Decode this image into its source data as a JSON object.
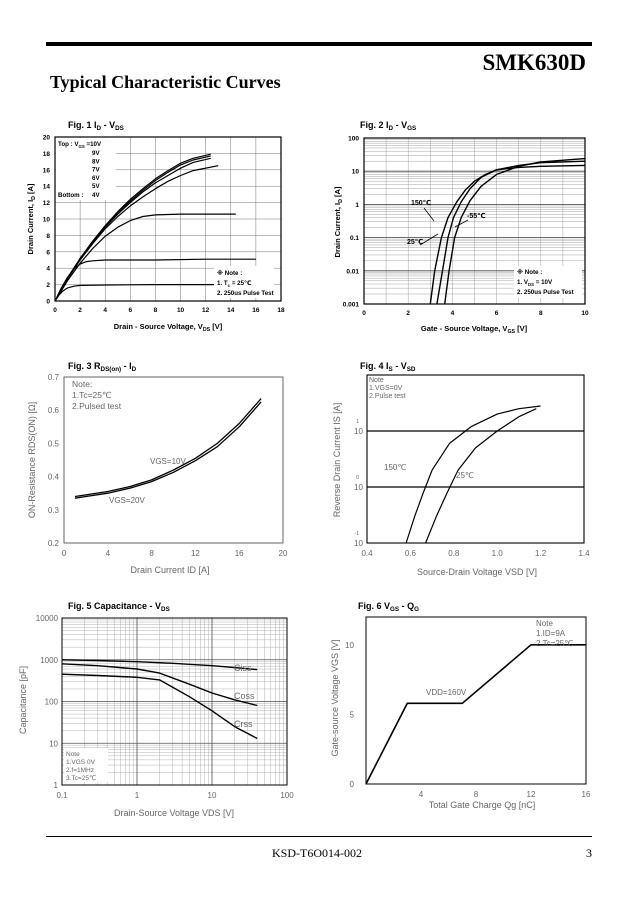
{
  "header": {
    "part_number": "SMK630D",
    "section_title": "Typical Characteristic Curves"
  },
  "footer": {
    "doc_number": "KSD-T6O014-002",
    "page": "3"
  },
  "chart_data": [
    {
      "id": "fig1",
      "type": "line",
      "title_main": "Fig. 1 I",
      "title_sub": "D",
      "title_rest": "  -  V",
      "title_sub2": "DS",
      "xlabel": "Drain - Source Voltage, V",
      "xlabel_sub": "DS",
      "xlabel_tail": " [V]",
      "ylabel": "Drain Current, I",
      "ylabel_sub": "D",
      "ylabel_tail": " [A]",
      "xlim": [
        0,
        18
      ],
      "ylim": [
        0,
        20
      ],
      "xticks": [
        "0",
        "2",
        "4",
        "6",
        "8",
        "10",
        "12",
        "14",
        "16",
        "18"
      ],
      "yticks": [
        "0",
        "2",
        "4",
        "6",
        "8",
        "10",
        "12",
        "14",
        "16",
        "18",
        "20"
      ],
      "legend": [
        "Top : V",
        "GS",
        " =10V",
        "9V",
        "8V",
        "7V",
        "6V",
        "5V",
        "Bottom :",
        "4V"
      ],
      "note": [
        "※ Note :",
        "1. T",
        "c",
        " = 25℃",
        "2. 250us Pulse Test"
      ],
      "series": [
        {
          "name": "10V",
          "x": [
            0,
            1,
            2,
            3,
            4,
            5,
            6,
            7,
            8,
            9,
            10,
            11,
            12.4
          ],
          "y": [
            0,
            2.8,
            5.2,
            7.3,
            9.2,
            10.9,
            12.4,
            13.7,
            14.9,
            15.9,
            16.8,
            17.4,
            17.9
          ]
        },
        {
          "name": "9V",
          "x": [
            0,
            1,
            2,
            3,
            4,
            5,
            6,
            7,
            8,
            9,
            10,
            11,
            12.4
          ],
          "y": [
            0,
            2.8,
            5.2,
            7.2,
            9.1,
            10.8,
            12.2,
            13.5,
            14.7,
            15.7,
            16.6,
            17.2,
            17.7
          ]
        },
        {
          "name": "8V",
          "x": [
            0,
            1,
            2,
            3,
            4,
            5,
            6,
            7,
            8,
            9,
            10,
            11,
            12.4
          ],
          "y": [
            0,
            2.8,
            5.1,
            7.1,
            9.0,
            10.6,
            12.0,
            13.3,
            14.4,
            15.3,
            16.2,
            16.9,
            17.4
          ]
        },
        {
          "name": "7V",
          "x": [
            0,
            1,
            2,
            3,
            4,
            5,
            6,
            7,
            8,
            9,
            10,
            11,
            13
          ],
          "y": [
            0,
            2.7,
            5.0,
            7.0,
            8.8,
            10.3,
            11.6,
            12.7,
            13.7,
            14.6,
            15.3,
            15.9,
            16.5
          ]
        },
        {
          "name": "6V",
          "x": [
            0,
            1,
            2,
            3,
            4,
            5,
            6,
            7,
            8,
            10,
            12,
            14.4
          ],
          "y": [
            0,
            2.5,
            4.6,
            6.4,
            7.9,
            9.0,
            9.8,
            10.3,
            10.5,
            10.6,
            10.6,
            10.6
          ]
        },
        {
          "name": "5V",
          "x": [
            0,
            0.5,
            1,
            1.5,
            2,
            2.5,
            3,
            4,
            6,
            8,
            12,
            16
          ],
          "y": [
            0,
            1.6,
            2.9,
            3.9,
            4.5,
            4.8,
            4.9,
            5.0,
            5.0,
            5.0,
            5.1,
            5.1
          ]
        },
        {
          "name": "4V",
          "x": [
            0,
            0.3,
            0.6,
            1,
            1.5,
            2,
            4,
            8,
            12,
            14.4
          ],
          "y": [
            0,
            0.7,
            1.2,
            1.6,
            1.8,
            1.9,
            1.95,
            2.0,
            2.0,
            2.0
          ]
        }
      ]
    },
    {
      "id": "fig2",
      "type": "line",
      "title_main": "Fig. 2 I",
      "title_sub": "D",
      "title_rest": "  -  V",
      "title_sub2": "GS",
      "xlabel": "Gate - Source Voltage, V",
      "xlabel_sub": "GS",
      "xlabel_tail": " [V]",
      "ylabel": "Drain Current, I",
      "ylabel_sub": "D",
      "ylabel_tail": " [A]",
      "xscale": "linear",
      "yscale": "log",
      "xlim": [
        0,
        10
      ],
      "ylim": [
        0.001,
        100
      ],
      "xticks": [
        "0",
        "2",
        "4",
        "6",
        "8",
        "10"
      ],
      "yticks": [
        "0.001",
        "0.01",
        "0.1",
        "1",
        "10",
        "100"
      ],
      "note": [
        "※ Note :",
        "1. V",
        "DS",
        " = 10V",
        "2. 250us Pulse Test"
      ],
      "annotations": [
        "150℃",
        "-55℃",
        "25℃"
      ],
      "series": [
        {
          "name": "150℃",
          "x": [
            3.0,
            3.2,
            3.5,
            3.8,
            4.2,
            4.6,
            5.0,
            5.5,
            6.0,
            7.0,
            8.0,
            10.0
          ],
          "y": [
            0.001,
            0.01,
            0.1,
            0.4,
            1.2,
            2.8,
            5.0,
            8.0,
            11.0,
            13.0,
            14.0,
            15.0
          ]
        },
        {
          "name": "25℃",
          "x": [
            3.3,
            3.55,
            3.8,
            4.05,
            4.4,
            4.8,
            5.3,
            6.0,
            7.0,
            8.0,
            10.0
          ],
          "y": [
            0.001,
            0.01,
            0.1,
            0.4,
            1.2,
            3.0,
            6.5,
            11.0,
            15.0,
            18.0,
            20.0
          ]
        },
        {
          "name": "-55℃",
          "x": [
            3.65,
            3.85,
            4.1,
            4.4,
            4.8,
            5.3,
            6.0,
            7.0,
            8.0,
            10.0
          ],
          "y": [
            0.001,
            0.01,
            0.1,
            0.4,
            1.3,
            3.5,
            8.0,
            14.0,
            19.0,
            24.0
          ]
        }
      ]
    },
    {
      "id": "fig3",
      "type": "line",
      "title_main": "Fig. 3 R",
      "title_sub": "DS(on)",
      "title_rest": "  -  I",
      "title_sub2": "D",
      "xlabel": "Drain Current ID [A]",
      "ylabel": "ON-Resistance RDS(ON) [Ω]",
      "xlim": [
        0,
        20
      ],
      "ylim": [
        0.2,
        0.7
      ],
      "xticks": [
        "0",
        "4",
        "8",
        "12",
        "16",
        "20"
      ],
      "yticks": [
        "0.2",
        "0.3",
        "0.4",
        "0.5",
        "0.6",
        "0.7"
      ],
      "note": [
        "Note:",
        "1.Tc=25℃",
        "2.Pulsed test"
      ],
      "series": [
        {
          "name": "VGS=10V",
          "x": [
            1,
            2,
            4,
            6,
            8,
            10,
            12,
            14,
            16,
            18
          ],
          "y": [
            0.34,
            0.345,
            0.355,
            0.37,
            0.39,
            0.42,
            0.455,
            0.5,
            0.56,
            0.635
          ]
        },
        {
          "name": "VGS=20V",
          "x": [
            1,
            2,
            4,
            6,
            8,
            10,
            12,
            14,
            16,
            18
          ],
          "y": [
            0.335,
            0.34,
            0.35,
            0.365,
            0.385,
            0.413,
            0.448,
            0.49,
            0.55,
            0.625
          ]
        }
      ],
      "labels": [
        "VGS=10V",
        "VGS=20V"
      ]
    },
    {
      "id": "fig4",
      "type": "line",
      "title_main": "Fig. 4 I",
      "title_sub": "S",
      "title_rest": " -  V",
      "title_sub2": "SD",
      "xlabel": "Source-Drain Voltage VSD [V]",
      "ylabel": "Reverse Drain Current IS [A]",
      "xscale": "linear",
      "yscale": "log",
      "xlim": [
        0.4,
        1.4
      ],
      "ylim": [
        0.1,
        100
      ],
      "xticks": [
        "0.4",
        "0.6",
        "0.8",
        "1.0",
        "1.2",
        "1.4"
      ],
      "yticks": [
        "10",
        "10",
        "10"
      ],
      "ytick_exp": [
        "-1",
        "0",
        "1"
      ],
      "note": [
        "Note",
        "1.VGS=0V",
        "2.Pulse test"
      ],
      "series": [
        {
          "name": "150℃",
          "x": [
            0.58,
            0.62,
            0.66,
            0.7,
            0.78,
            0.88,
            1.0,
            1.1,
            1.2
          ],
          "y": [
            0.1,
            0.3,
            0.8,
            2.0,
            6.0,
            12.0,
            20.0,
            25.0,
            28.0
          ]
        },
        {
          "name": "25℃",
          "x": [
            0.67,
            0.72,
            0.77,
            0.82,
            0.9,
            1.0,
            1.1,
            1.18
          ],
          "y": [
            0.1,
            0.3,
            0.8,
            2.0,
            5.0,
            10.0,
            18.0,
            25.0
          ]
        }
      ],
      "labels": [
        "150℃",
        "25℃"
      ]
    },
    {
      "id": "fig5",
      "type": "line",
      "title_main": "Fig. 5 Capacitance - V",
      "title_sub": "DS",
      "xlabel": "Drain-Source Voltage VDS [V]",
      "ylabel": "Capacitance [pF]",
      "xscale": "log",
      "yscale": "log",
      "xlim": [
        0.1,
        100
      ],
      "ylim": [
        1,
        10000
      ],
      "xticks": [
        "0.1",
        "1",
        "10",
        "100"
      ],
      "yticks": [
        "1",
        "10",
        "100",
        "1000",
        "10000"
      ],
      "note": [
        "Note",
        "1.VGS 0V",
        "2.f=1MHz",
        "3.Tc=25℃"
      ],
      "series": [
        {
          "name": "Ciss",
          "x": [
            0.1,
            0.3,
            1,
            3,
            10,
            20,
            40
          ],
          "y": [
            1000,
            960,
            900,
            820,
            720,
            650,
            580
          ]
        },
        {
          "name": "Coss",
          "x": [
            0.1,
            0.3,
            1,
            2,
            5,
            10,
            20,
            40
          ],
          "y": [
            800,
            720,
            600,
            480,
            260,
            160,
            110,
            80
          ]
        },
        {
          "name": "Crss",
          "x": [
            0.1,
            0.3,
            1,
            2,
            5,
            10,
            20,
            40
          ],
          "y": [
            450,
            420,
            380,
            330,
            130,
            60,
            25,
            13
          ]
        }
      ],
      "labels": [
        "Ciss",
        "Coss",
        "Crss"
      ]
    },
    {
      "id": "fig6",
      "type": "line",
      "title_main": "Fig. 6 V",
      "title_sub": "GS",
      "title_rest": "  -  Q",
      "title_sub2": "G",
      "xlabel": "Total Gate Charge Qg [nC]",
      "ylabel": "Gate-source Voltage VGS [V]",
      "xlim": [
        0,
        16
      ],
      "ylim": [
        0,
        12
      ],
      "xticks": [
        "4",
        "8",
        "12",
        "16"
      ],
      "yticks": [
        "0",
        "5",
        "10"
      ],
      "note": [
        "Note",
        "1.ID=9A",
        "2.Tc=25℃"
      ],
      "series": [
        {
          "name": "VDD=160V",
          "x": [
            0,
            3,
            7,
            12,
            16
          ],
          "y": [
            0,
            5.8,
            5.8,
            10,
            10
          ]
        }
      ],
      "labels": [
        "VDD=160V"
      ]
    }
  ]
}
